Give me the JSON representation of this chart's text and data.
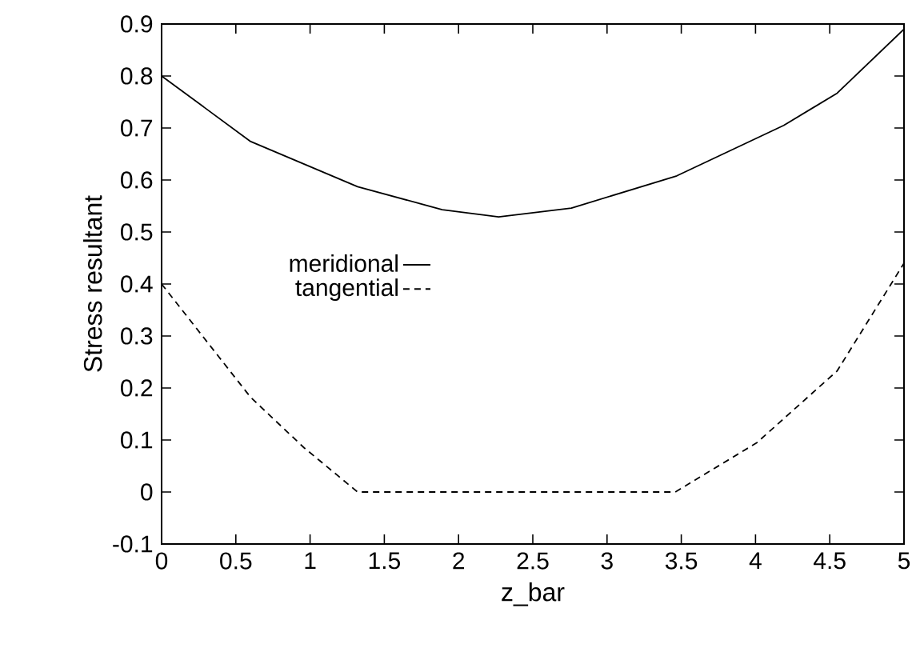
{
  "chart_data": {
    "type": "line",
    "xlabel": "z_bar",
    "ylabel": "Stress resultant",
    "xlim": [
      0,
      5
    ],
    "ylim": [
      -0.1,
      0.9
    ],
    "xticks": [
      0,
      0.5,
      1,
      1.5,
      2,
      2.5,
      3,
      3.5,
      4,
      4.5,
      5
    ],
    "yticks": [
      -0.1,
      0,
      0.1,
      0.2,
      0.3,
      0.4,
      0.5,
      0.6,
      0.7,
      0.8,
      0.9
    ],
    "grid": false,
    "legend": "left",
    "marker": "none",
    "series": [
      {
        "name": "meridional",
        "color": "#000000",
        "line_style": "solid",
        "x": [
          0,
          0.6,
          1.32,
          1.89,
          2.27,
          2.76,
          3.47,
          4.19,
          4.55,
          5
        ],
        "values": [
          0.8,
          0.674,
          0.587,
          0.543,
          0.529,
          0.546,
          0.608,
          0.705,
          0.767,
          0.89
        ]
      },
      {
        "name": "tangential",
        "color": "#000000",
        "line_style": "dashed",
        "x": [
          0,
          0.6,
          0.96,
          1.32,
          3.46,
          4.01,
          4.55,
          5
        ],
        "values": [
          0.4,
          0.182,
          0.085,
          0,
          0,
          0.095,
          0.233,
          0.44
        ]
      }
    ]
  }
}
